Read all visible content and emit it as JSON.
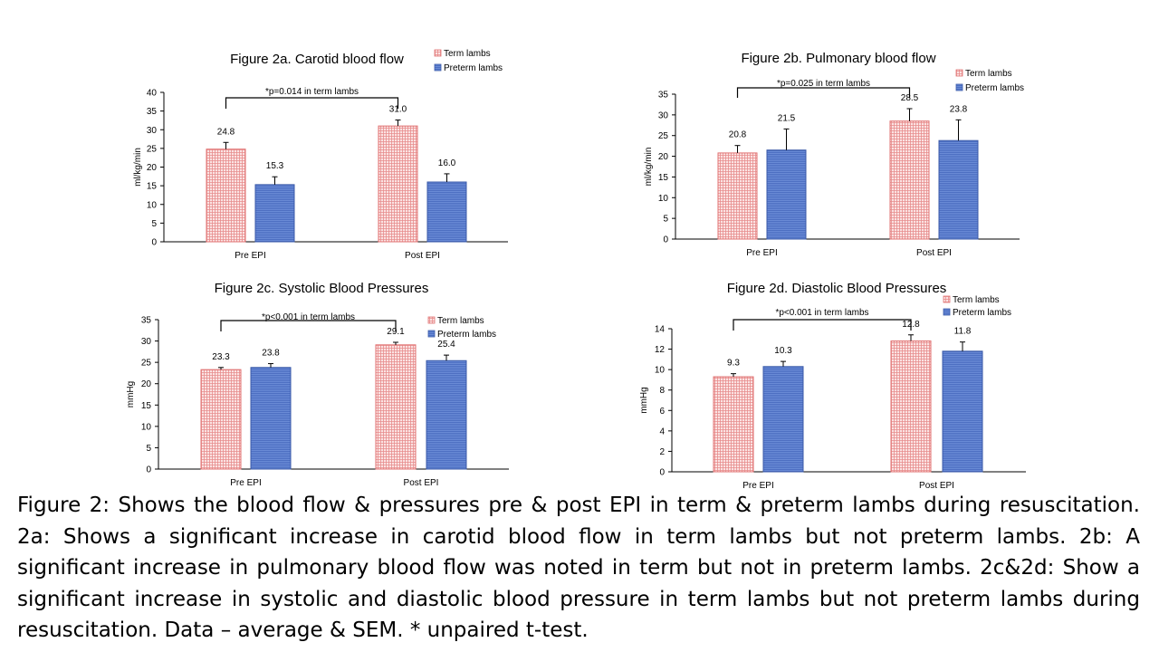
{
  "chart_data": [
    {
      "type": "bar",
      "title": "Figure 2a. Carotid blood flow",
      "xlabel": "",
      "ylabel": "ml/kg/min",
      "ylim": [
        0,
        40
      ],
      "yticks": [
        0,
        5,
        10,
        15,
        20,
        25,
        30,
        35,
        40
      ],
      "categories": [
        "Pre EPI",
        "Post EPI"
      ],
      "series": [
        {
          "name": "Term lambs",
          "values": [
            24.8,
            31.0
          ],
          "labels": [
            "24.8",
            "31.0"
          ],
          "errors": [
            1.8,
            1.6
          ],
          "color": "#f2b8b8",
          "pattern": "grid"
        },
        {
          "name": "Preterm lambs",
          "values": [
            15.3,
            16.0
          ],
          "labels": [
            "15.3",
            "16.0"
          ],
          "errors": [
            2.1,
            2.2
          ],
          "color": "#5b7fce",
          "pattern": "lines"
        }
      ],
      "annotation": "*p=0.014 in term lambs",
      "legend": "top-right",
      "grid": false
    },
    {
      "type": "bar",
      "title": "Figure 2b. Pulmonary blood flow",
      "xlabel": "",
      "ylabel": "ml/kg/min",
      "ylim": [
        0,
        35
      ],
      "yticks": [
        0,
        5,
        10,
        15,
        20,
        25,
        30,
        35
      ],
      "categories": [
        "Pre EPI",
        "Post EPI"
      ],
      "series": [
        {
          "name": "Term lambs",
          "values": [
            20.8,
            28.5
          ],
          "labels": [
            "20.8",
            "28.5"
          ],
          "errors": [
            1.8,
            3.0
          ],
          "color": "#f2b8b8",
          "pattern": "grid"
        },
        {
          "name": "Preterm lambs",
          "values": [
            21.5,
            23.8
          ],
          "labels": [
            "21.5",
            "23.8"
          ],
          "errors": [
            5.1,
            5.0
          ],
          "color": "#5b7fce",
          "pattern": "lines"
        }
      ],
      "annotation": "*p=0.025 in term lambs",
      "legend": "top-right",
      "grid": false
    },
    {
      "type": "bar",
      "title": "Figure 2c. Systolic Blood Pressures",
      "xlabel": "",
      "ylabel": "mmHg",
      "ylim": [
        0,
        35
      ],
      "yticks": [
        0,
        5,
        10,
        15,
        20,
        25,
        30,
        35
      ],
      "categories": [
        "Pre EPI",
        "Post EPI"
      ],
      "series": [
        {
          "name": "Term lambs",
          "values": [
            23.3,
            29.1
          ],
          "labels": [
            "23.3",
            "29.1"
          ],
          "errors": [
            0.5,
            0.6
          ],
          "color": "#f2b8b8",
          "pattern": "grid"
        },
        {
          "name": "Preterm lambs",
          "values": [
            23.8,
            25.4
          ],
          "labels": [
            "23.8",
            "25.4"
          ],
          "errors": [
            0.9,
            1.3
          ],
          "color": "#5b7fce",
          "pattern": "lines"
        }
      ],
      "annotation": "*p<0.001 in term lambs",
      "legend": "top-right",
      "grid": false
    },
    {
      "type": "bar",
      "title": "Figure 2d. Diastolic Blood Pressures",
      "xlabel": "",
      "ylabel": "mmHg",
      "ylim": [
        0,
        14
      ],
      "yticks": [
        0,
        2,
        4,
        6,
        8,
        10,
        12,
        14
      ],
      "categories": [
        "Pre EPI",
        "Post EPI"
      ],
      "series": [
        {
          "name": "Term lambs",
          "values": [
            9.3,
            12.8
          ],
          "labels": [
            "9.3",
            "12.8"
          ],
          "errors": [
            0.3,
            0.6
          ],
          "color": "#f2b8b8",
          "pattern": "grid"
        },
        {
          "name": "Preterm lambs",
          "values": [
            10.3,
            11.8
          ],
          "labels": [
            "10.3",
            "11.8"
          ],
          "errors": [
            0.5,
            0.9
          ],
          "color": "#5b7fce",
          "pattern": "lines"
        }
      ],
      "annotation": "*p<0.001 in term lambs",
      "legend": "top-right",
      "grid": false
    }
  ],
  "caption": "Figure 2: Shows the blood flow & pressures pre & post EPI in term & preterm lambs during resuscitation. 2a: Shows a significant increase in carotid blood flow in term lambs but not preterm lambs. 2b: A significant increase in pulmonary blood flow was noted in term but not in preterm lambs. 2c&2d: Show a significant increase in systolic and diastolic blood pressure in term lambs but not preterm lambs during resuscitation. Data – average & SEM. * unpaired t-test."
}
